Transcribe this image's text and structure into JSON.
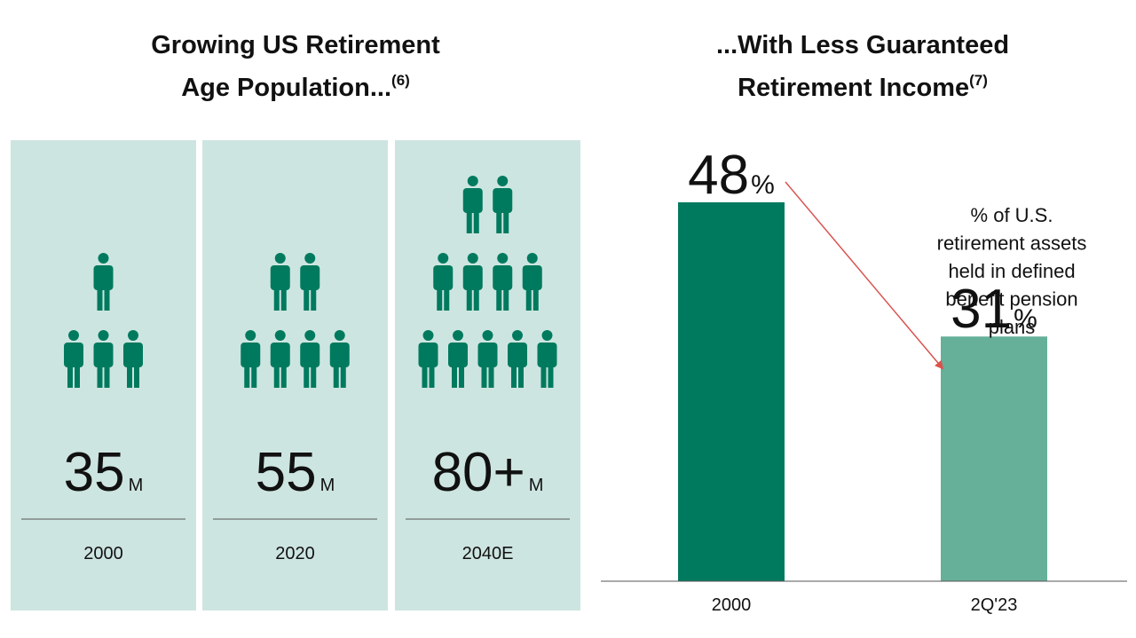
{
  "population": {
    "title_lines": [
      "Growing US Retirement",
      "Age Population..."
    ],
    "title_footnote": "(6)",
    "panels": [
      {
        "value": "35",
        "unit": "M",
        "year": "2000"
      },
      {
        "value": "55",
        "unit": "M",
        "year": "2020"
      },
      {
        "value": "80+",
        "unit": "M",
        "year": "2040E"
      }
    ]
  },
  "chart_data": {
    "type": "bar",
    "title_lines": [
      "...With Less Guaranteed",
      "Retirement Income"
    ],
    "title_footnote": "(7)",
    "categories": [
      "2000",
      "2Q'23"
    ],
    "values": [
      48,
      31
    ],
    "value_unit": "%",
    "colors": [
      "#007a5e",
      "#66b09a"
    ],
    "annotation": [
      "% of U.S.",
      "retirement assets",
      "held in defined",
      "benefit pension",
      "plans"
    ],
    "arrow_color": "#d9534f"
  }
}
